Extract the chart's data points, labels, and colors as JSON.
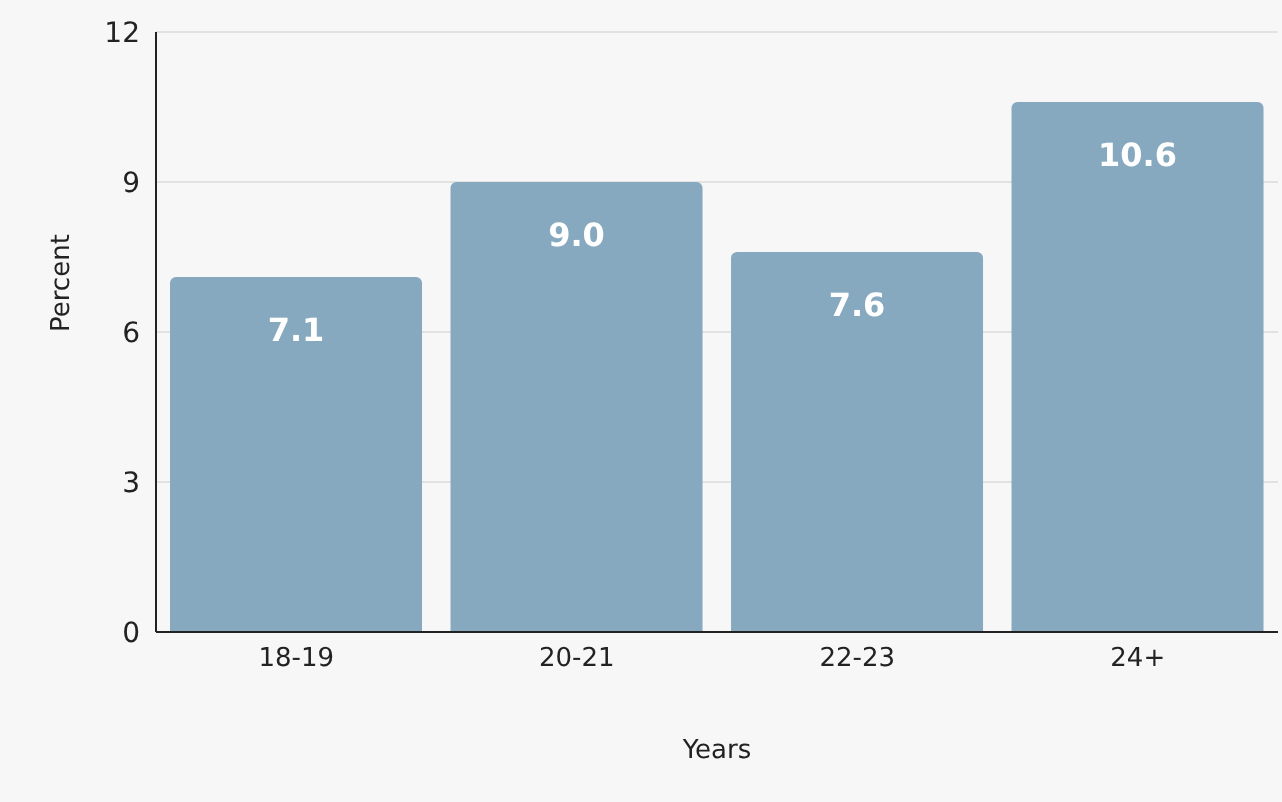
{
  "chart_data": {
    "type": "bar",
    "xlabel": "Years",
    "ylabel": "Percent",
    "categories": [
      "18-19",
      "20-21",
      "22-23",
      "24+"
    ],
    "values": [
      7.1,
      9.0,
      7.6,
      10.6
    ],
    "value_labels": [
      "7.1",
      "9.0",
      "7.6",
      "10.6"
    ],
    "color": "#86a9c0",
    "ylim": [
      0,
      12
    ],
    "yticks": [
      0,
      3,
      6,
      9,
      12
    ],
    "grid": "y"
  }
}
